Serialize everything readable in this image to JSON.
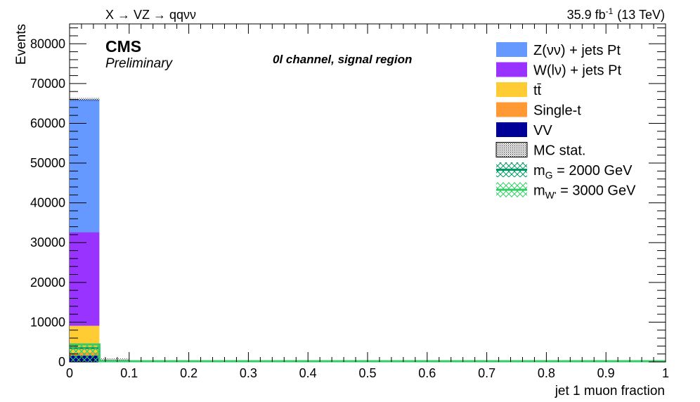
{
  "header": {
    "process": "X → VZ → qqνν",
    "lumi_value": "35.9 fb",
    "lumi_exp": "-1",
    "energy": "(13 TeV)"
  },
  "labels": {
    "experiment": "CMS",
    "status": "Preliminary",
    "region": "0l channel, signal region"
  },
  "chart_data": {
    "type": "bar",
    "stacked": true,
    "xlabel": "jet 1 muon fraction",
    "ylabel": "Events",
    "xlim": [
      0,
      1
    ],
    "ylim": [
      0,
      85000
    ],
    "bin_width": 0.05,
    "xticks": [
      "0",
      "0.1",
      "0.2",
      "0.3",
      "0.4",
      "0.5",
      "0.6",
      "0.7",
      "0.8",
      "0.9",
      "1"
    ],
    "yticks": [
      "0",
      "10000",
      "20000",
      "30000",
      "40000",
      "50000",
      "60000",
      "70000",
      "80000"
    ],
    "bins": [
      [
        0.0,
        0.05
      ],
      [
        0.05,
        0.1
      ]
    ],
    "series": [
      {
        "name": "VV",
        "color": "#000099",
        "values": [
          1600,
          10
        ]
      },
      {
        "name": "Single-t",
        "color": "#ff9933",
        "values": [
          700,
          5
        ]
      },
      {
        "name": "tt̄",
        "color": "#ffcc33",
        "values": [
          6800,
          40
        ]
      },
      {
        "name": "W(lν) + jets Pt",
        "color": "#9933ff",
        "values": [
          23500,
          120
        ]
      },
      {
        "name": "Z(νν) + jets Pt",
        "color": "#6699ff",
        "values": [
          33400,
          300
        ]
      }
    ],
    "total_mc": [
      66000,
      475
    ],
    "signals": [
      {
        "name_main": "m",
        "name_sub": "G",
        "name_rest": " = 2000 GeV",
        "color": "#009966",
        "values": [
          3500,
          0
        ]
      },
      {
        "name_main": "m",
        "name_sub": "W'",
        "name_rest": " = 3000 GeV",
        "color": "#33cc66",
        "values": [
          4400,
          0
        ]
      }
    ],
    "legend": {
      "position": "top-right",
      "entries": [
        {
          "label": "Z(νν) + jets Pt",
          "kind": "fill",
          "color": "#6699ff"
        },
        {
          "label": "W(lν) + jets Pt",
          "kind": "fill",
          "color": "#9933ff"
        },
        {
          "label": "tt̄",
          "kind": "fill",
          "color": "#ffcc33"
        },
        {
          "label": "Single-t",
          "kind": "fill",
          "color": "#ff9933"
        },
        {
          "label": "VV",
          "kind": "fill",
          "color": "#000099"
        },
        {
          "label": "MC stat.",
          "kind": "dots",
          "color": "#000000"
        },
        {
          "label_main": "m",
          "label_sub": "G",
          "label_rest": " = 2000 GeV",
          "kind": "line",
          "color": "#009966"
        },
        {
          "label_main": "m",
          "label_sub": "W'",
          "label_rest": " = 3000 GeV",
          "kind": "line",
          "color": "#33cc66"
        }
      ]
    }
  }
}
